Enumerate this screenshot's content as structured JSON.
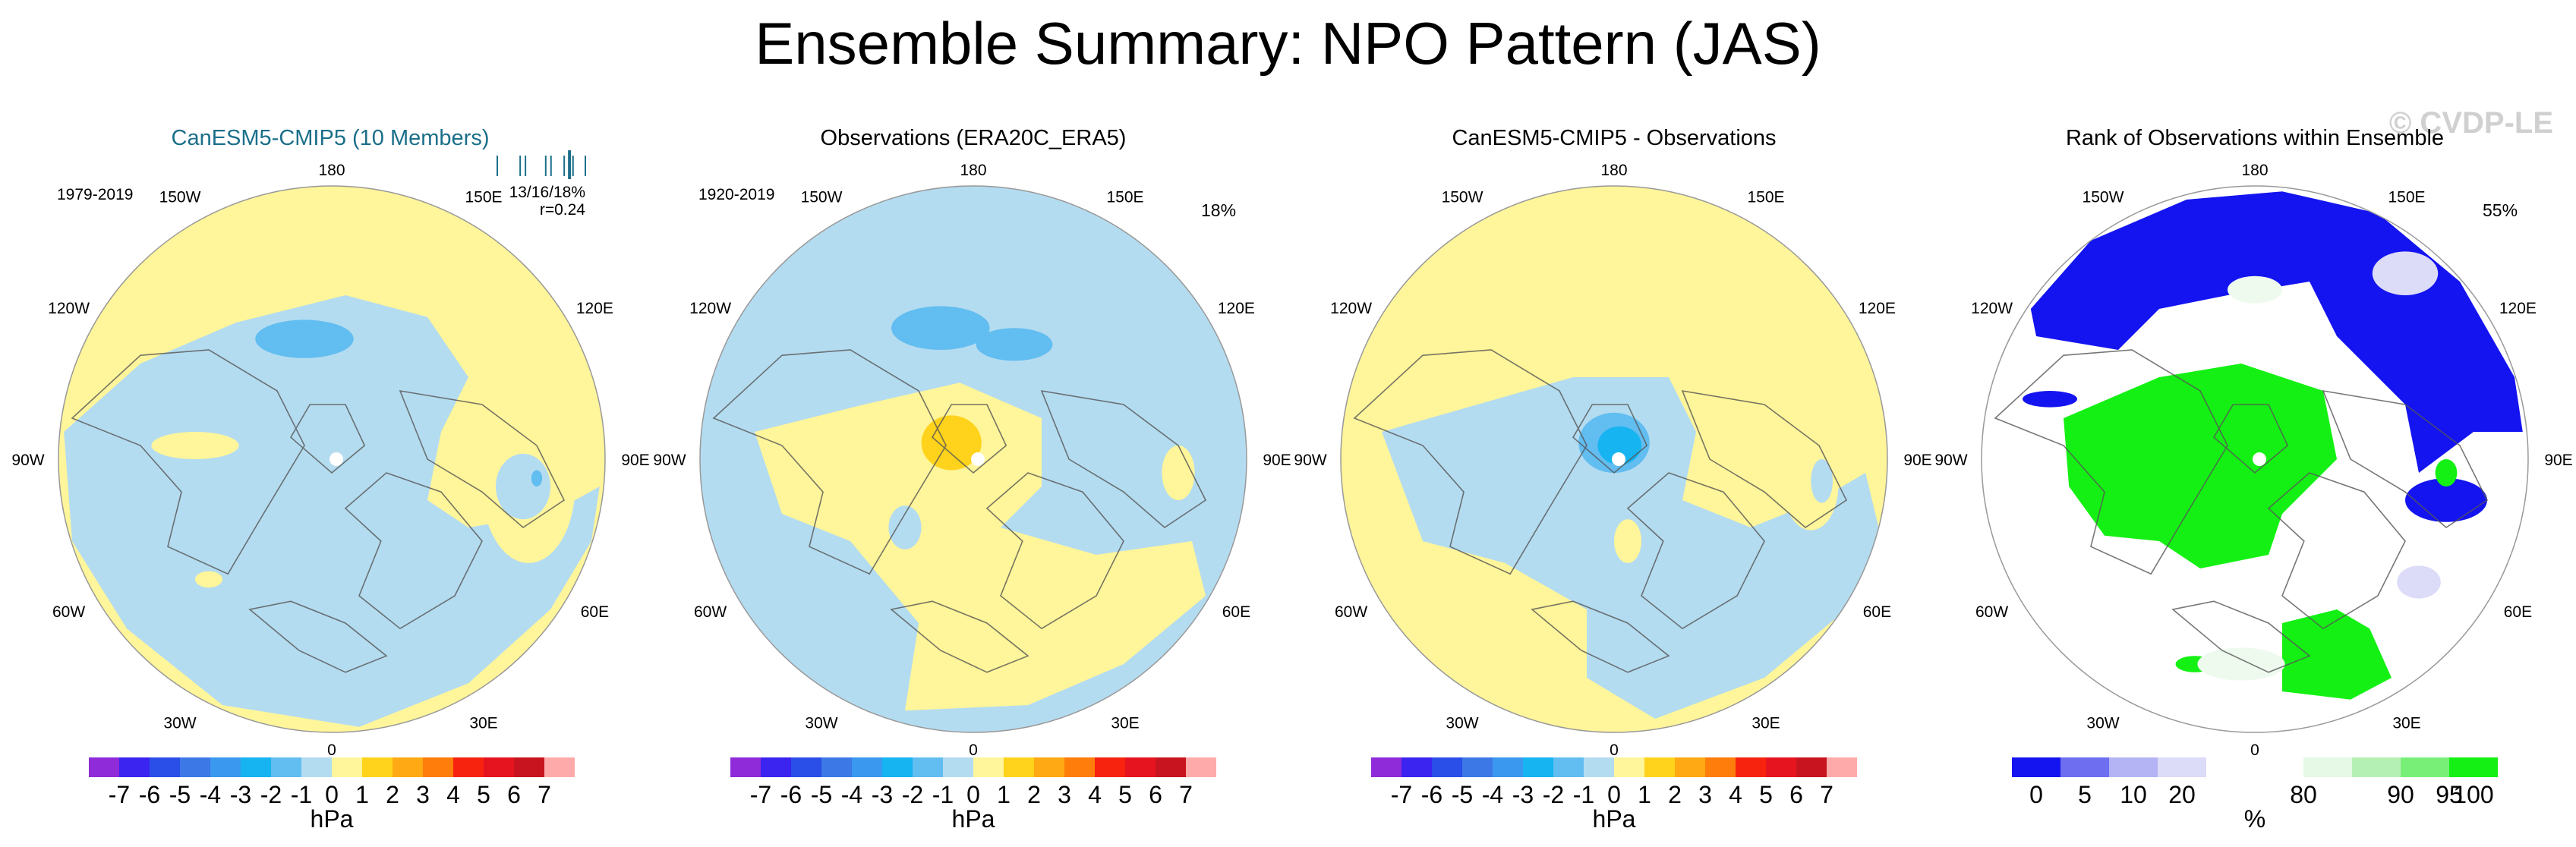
{
  "title": "Ensemble Summary: NPO Pattern (JAS)",
  "watermark": "© CVDP-LE",
  "colors": {
    "neg_light": "#b4dcf0",
    "neg_mid": "#62bdf0",
    "neg_strong": "#16b4f0",
    "pos_light": "#fff59a",
    "pos_mid": "#ffd21c",
    "rank_blue": "#1414f0",
    "rank_lav": "#dcdcf8",
    "rank_green": "#14f014",
    "rank_palegreen": "#eefaee",
    "title_teal": "#1b6f8a",
    "coast": "#555555"
  },
  "chart_data": [
    {
      "type": "heatmap",
      "id": "model",
      "title": "CanESM5-CMIP5 (10 Members)",
      "period": "1979-2019",
      "stats": "13/16/18%",
      "corr": "r=0.24",
      "percent": "",
      "projection": "north polar stereographic",
      "longitude_labels": [
        "180",
        "150E",
        "120E",
        "90E",
        "60E",
        "30E",
        "0",
        "30W",
        "60W",
        "90W",
        "120W",
        "150W"
      ],
      "ensemble_ticks": [
        0.0,
        0.26,
        0.32,
        0.55,
        0.61,
        0.76,
        0.86,
        1.0
      ],
      "ensemble_highlight": 0.82,
      "colorbar": {
        "label": "hPa",
        "ticks": [
          "-7",
          "-6",
          "-5",
          "-4",
          "-3",
          "-2",
          "-1",
          "0",
          "1",
          "2",
          "3",
          "4",
          "5",
          "6",
          "7"
        ],
        "colors": [
          "#8f2bd8",
          "#3b23f0",
          "#2a4ee8",
          "#3c78e6",
          "#3a98ee",
          "#16b4f0",
          "#62bdf0",
          "#b4dcf0",
          "#fff59a",
          "#ffd21c",
          "#ffaa14",
          "#ff7d0a",
          "#f7230f",
          "#e6141e",
          "#c8141e",
          "#ffaaaa"
        ]
      }
    },
    {
      "type": "heatmap",
      "id": "obs",
      "title": "Observations (ERA20C_ERA5)",
      "period": "1920-2019",
      "stats": "",
      "corr": "",
      "percent": "18%",
      "projection": "north polar stereographic",
      "longitude_labels": [
        "180",
        "150E",
        "120E",
        "90E",
        "60E",
        "30E",
        "0",
        "30W",
        "60W",
        "90W",
        "120W",
        "150W"
      ],
      "colorbar": {
        "label": "hPa",
        "ticks": [
          "-7",
          "-6",
          "-5",
          "-4",
          "-3",
          "-2",
          "-1",
          "0",
          "1",
          "2",
          "3",
          "4",
          "5",
          "6",
          "7"
        ],
        "colors": [
          "#8f2bd8",
          "#3b23f0",
          "#2a4ee8",
          "#3c78e6",
          "#3a98ee",
          "#16b4f0",
          "#62bdf0",
          "#b4dcf0",
          "#fff59a",
          "#ffd21c",
          "#ffaa14",
          "#ff7d0a",
          "#f7230f",
          "#e6141e",
          "#c8141e",
          "#ffaaaa"
        ]
      }
    },
    {
      "type": "heatmap",
      "id": "diff",
      "title": "CanESM5-CMIP5 - Observations",
      "period": "",
      "stats": "",
      "corr": "",
      "percent": "",
      "projection": "north polar stereographic",
      "longitude_labels": [
        "180",
        "150E",
        "120E",
        "90E",
        "60E",
        "30E",
        "0",
        "30W",
        "60W",
        "90W",
        "120W",
        "150W"
      ],
      "colorbar": {
        "label": "hPa",
        "ticks": [
          "-7",
          "-6",
          "-5",
          "-4",
          "-3",
          "-2",
          "-1",
          "0",
          "1",
          "2",
          "3",
          "4",
          "5",
          "6",
          "7"
        ],
        "colors": [
          "#8f2bd8",
          "#3b23f0",
          "#2a4ee8",
          "#3c78e6",
          "#3a98ee",
          "#16b4f0",
          "#62bdf0",
          "#b4dcf0",
          "#fff59a",
          "#ffd21c",
          "#ffaa14",
          "#ff7d0a",
          "#f7230f",
          "#e6141e",
          "#c8141e",
          "#ffaaaa"
        ]
      }
    },
    {
      "type": "heatmap",
      "id": "rank",
      "title": "Rank of Observations within Ensemble",
      "period": "",
      "stats": "",
      "corr": "",
      "percent": "55%",
      "projection": "north polar stereographic",
      "longitude_labels": [
        "180",
        "150E",
        "120E",
        "90E",
        "60E",
        "30E",
        "0",
        "30W",
        "60W",
        "90W",
        "120W",
        "150W"
      ],
      "colorbar": {
        "label": "%",
        "ticks": [
          "0",
          "5",
          "10",
          "20",
          "80",
          "90",
          "95",
          "100"
        ],
        "colors": [
          "#1414f0",
          "#6e6ef0",
          "#b4b4f5",
          "#dcdcf8",
          "#ffffff",
          "#ffffff",
          "#e6f8e6",
          "#b4f0b4",
          "#78f078",
          "#14f014"
        ]
      }
    }
  ]
}
